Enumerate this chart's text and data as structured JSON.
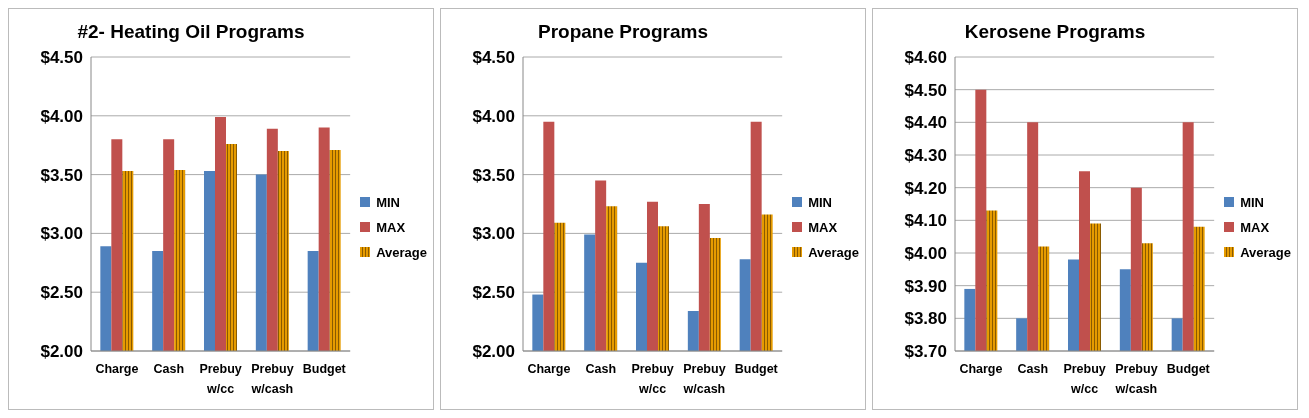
{
  "chart_data": [
    {
      "type": "bar",
      "title": "#2- Heating Oil Programs",
      "categories": [
        "Charge",
        "Cash",
        "Prebuy w/cc",
        "Prebuy w/cash",
        "Budget"
      ],
      "series": [
        {
          "name": "MIN",
          "color": "#4f81bd",
          "values": [
            2.89,
            2.85,
            3.53,
            3.5,
            2.85
          ]
        },
        {
          "name": "MAX",
          "color": "#c0504d",
          "values": [
            3.8,
            3.8,
            3.99,
            3.89,
            3.9
          ]
        },
        {
          "name": "Average",
          "color": "#e69b00",
          "values": [
            3.53,
            3.54,
            3.76,
            3.7,
            3.71
          ]
        }
      ],
      "ylim": [
        2,
        4.5
      ],
      "yticks": [
        {
          "value": 2,
          "label": "$2.00"
        },
        {
          "value": 2.5,
          "label": "$2.50"
        },
        {
          "value": 3,
          "label": "$3.00"
        },
        {
          "value": 3.5,
          "label": "$3.50"
        },
        {
          "value": 4,
          "label": "$4.00"
        },
        {
          "value": 4.5,
          "label": "$4.50"
        }
      ],
      "grid": "y",
      "legend": "right"
    },
    {
      "type": "bar",
      "title": "Propane Programs",
      "categories": [
        "Charge",
        "Cash",
        "Prebuy w/cc",
        "Prebuy w/cash",
        "Budget"
      ],
      "series": [
        {
          "name": "MIN",
          "color": "#4f81bd",
          "values": [
            2.48,
            2.99,
            2.75,
            2.34,
            2.78
          ]
        },
        {
          "name": "MAX",
          "color": "#c0504d",
          "values": [
            3.95,
            3.45,
            3.27,
            3.25,
            3.95
          ]
        },
        {
          "name": "Average",
          "color": "#e69b00",
          "values": [
            3.09,
            3.23,
            3.06,
            2.96,
            3.16
          ]
        }
      ],
      "ylim": [
        2,
        4.5
      ],
      "yticks": [
        {
          "value": 2,
          "label": "$2.00"
        },
        {
          "value": 2.5,
          "label": "$2.50"
        },
        {
          "value": 3,
          "label": "$3.00"
        },
        {
          "value": 3.5,
          "label": "$3.50"
        },
        {
          "value": 4,
          "label": "$4.00"
        },
        {
          "value": 4.5,
          "label": "$4.50"
        }
      ],
      "grid": "y",
      "legend": "right"
    },
    {
      "type": "bar",
      "title": "Kerosene Programs",
      "categories": [
        "Charge",
        "Cash",
        "Prebuy w/cc",
        "Prebuy w/cash",
        "Budget"
      ],
      "series": [
        {
          "name": "MIN",
          "color": "#4f81bd",
          "values": [
            3.89,
            3.8,
            3.98,
            3.95,
            3.8
          ]
        },
        {
          "name": "MAX",
          "color": "#c0504d",
          "values": [
            4.5,
            4.4,
            4.25,
            4.2,
            4.4
          ]
        },
        {
          "name": "Average",
          "color": "#e69b00",
          "values": [
            4.13,
            4.02,
            4.09,
            4.03,
            4.08
          ]
        }
      ],
      "ylim": [
        3.7,
        4.6
      ],
      "yticks": [
        {
          "value": 3.7,
          "label": "$3.70"
        },
        {
          "value": 3.8,
          "label": "$3.80"
        },
        {
          "value": 3.9,
          "label": "$3.90"
        },
        {
          "value": 4,
          "label": "$4.00"
        },
        {
          "value": 4.1,
          "label": "$4.10"
        },
        {
          "value": 4.2,
          "label": "$4.20"
        },
        {
          "value": 4.3,
          "label": "$4.30"
        },
        {
          "value": 4.4,
          "label": "$4.40"
        },
        {
          "value": 4.5,
          "label": "$4.50"
        },
        {
          "value": 4.6,
          "label": "$4.60"
        }
      ],
      "grid": "y",
      "legend": "right"
    }
  ]
}
